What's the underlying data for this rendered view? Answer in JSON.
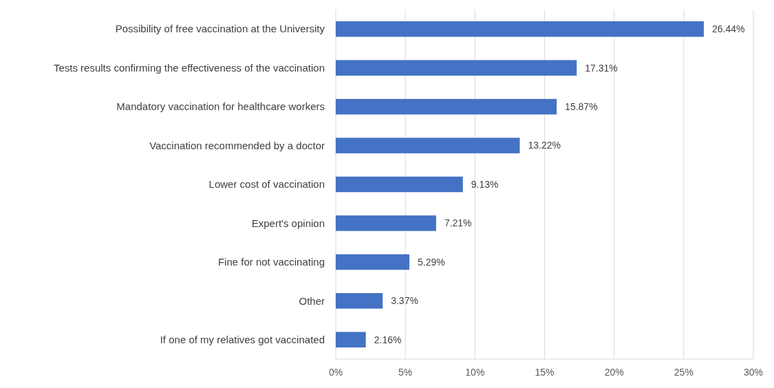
{
  "chart_data": {
    "type": "bar",
    "orientation": "horizontal",
    "categories": [
      "Possibility of free vaccination at the University",
      "Tests results confirming the effectiveness of the vaccination",
      "Mandatory vaccination for healthcare workers",
      "Vaccination recommended by a doctor",
      "Lower cost of vaccination",
      "Expert's opinion",
      "Fine for not vaccinating",
      "Other",
      "If one of my relatives got vaccinated"
    ],
    "values": [
      26.44,
      17.31,
      15.87,
      13.22,
      9.13,
      7.21,
      5.29,
      3.37,
      2.16
    ],
    "value_labels": [
      "26.44%",
      "17.31%",
      "15.87%",
      "13.22%",
      "9.13%",
      "7.21%",
      "5.29%",
      "3.37%",
      "2.16%"
    ],
    "color": "#4472c4",
    "xlim": [
      0,
      30
    ],
    "xticks": [
      {
        "value": 0,
        "label": "0%"
      },
      {
        "value": 5,
        "label": "5%"
      },
      {
        "value": 10,
        "label": "10%"
      },
      {
        "value": 15,
        "label": "15%"
      },
      {
        "value": 20,
        "label": "20%"
      },
      {
        "value": 25,
        "label": "25%"
      },
      {
        "value": 30,
        "label": "30%"
      }
    ],
    "grid": "x"
  }
}
